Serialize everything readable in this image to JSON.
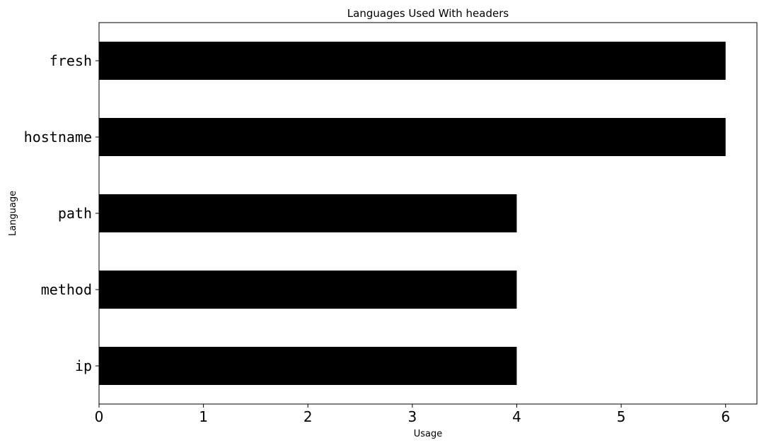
{
  "chart_data": {
    "type": "bar",
    "orientation": "horizontal",
    "title": "Languages Used With headers",
    "xlabel": "Usage",
    "ylabel": "Language",
    "categories": [
      "fresh",
      "hostname",
      "path",
      "method",
      "ip"
    ],
    "values": [
      6,
      6,
      4,
      4,
      4
    ],
    "xlim": [
      0,
      6.3
    ],
    "xticks": [
      "0",
      "1",
      "2",
      "3",
      "4",
      "5",
      "6"
    ],
    "grid": false,
    "legend": "none",
    "bar_color": "#000000"
  }
}
